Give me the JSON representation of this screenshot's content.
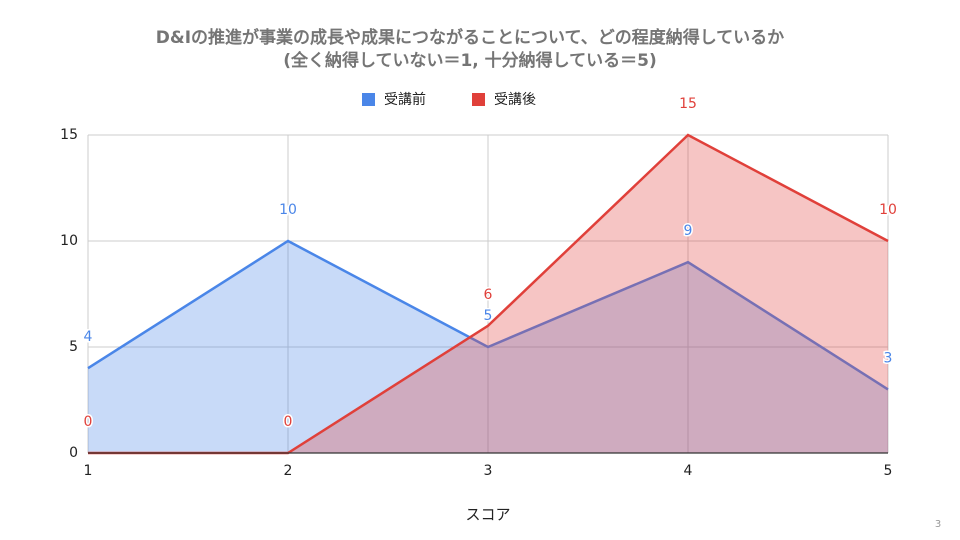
{
  "chart_data": {
    "type": "area",
    "title": "D&Iの推進が事業の成長や成果につながることについて、どの程度納得しているか",
    "subtitle": "(全く納得していない＝1, 十分納得している＝5)",
    "x_label": "スコア",
    "x": [
      1,
      2,
      3,
      4,
      5
    ],
    "series": [
      {
        "name": "受講前",
        "color": "#4a86e8",
        "values": [
          4,
          10,
          5,
          9,
          3
        ]
      },
      {
        "name": "受講後",
        "color": "#e0403a",
        "values": [
          0,
          0,
          6,
          15,
          10
        ]
      }
    ],
    "xlim": [
      1,
      5
    ],
    "xticks": [
      1,
      2,
      3,
      4,
      5
    ],
    "ylim": [
      0,
      15
    ],
    "yticks": [
      0,
      5,
      10,
      15
    ],
    "grid": true,
    "legend": "top",
    "data_labels": true
  },
  "page_number": "3"
}
